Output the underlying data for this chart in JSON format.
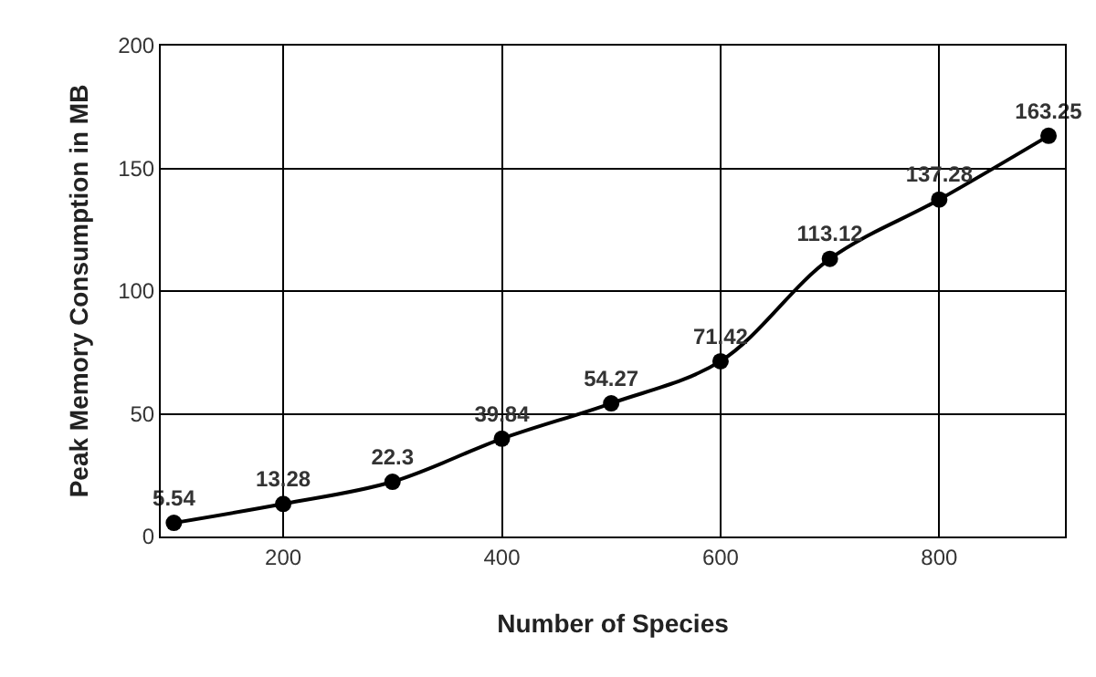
{
  "chart_data": {
    "type": "line",
    "xlabel": "Number of Species",
    "ylabel": "Peak Memory Consumption in MB",
    "x": [
      100,
      200,
      300,
      400,
      500,
      600,
      700,
      800,
      900
    ],
    "series": [
      {
        "color": "#000000",
        "values": [
          5.54,
          13.28,
          22.3,
          39.84,
          54.27,
          71.42,
          113.12,
          137.28,
          163.25
        ]
      }
    ],
    "xlim": [
      88,
      915
    ],
    "xticks": [
      200,
      400,
      600,
      800
    ],
    "ylim": [
      0,
      200
    ],
    "yticks": [
      0,
      50,
      100,
      150,
      200
    ],
    "grid": true,
    "marker": "circle",
    "line_style": "solid",
    "data_labels": true
  }
}
